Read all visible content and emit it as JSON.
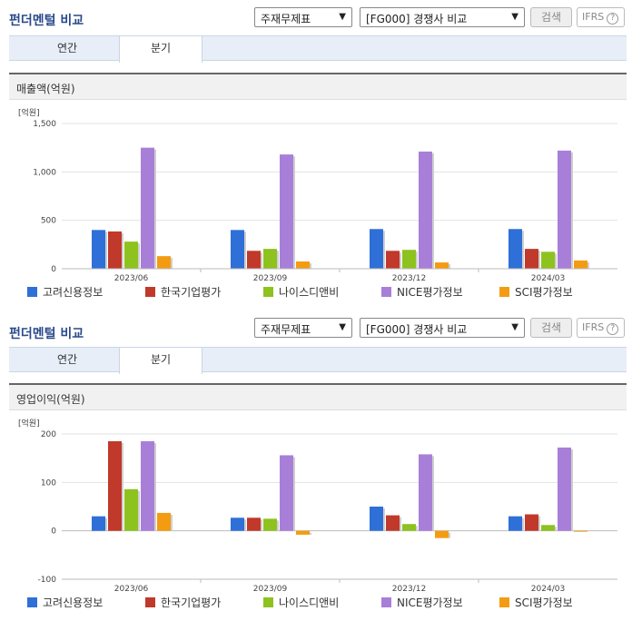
{
  "panels": [
    {
      "title": "펀더멘털 비교",
      "select1": "주재무제표",
      "select2": "[FG000] 경쟁사 비교",
      "search_label": "검색",
      "ifrs_label": "IFRS",
      "tabs": [
        "연간",
        "분기"
      ],
      "active_tab": 1,
      "chart_title": "매출액(억원)",
      "unit": "[억원]"
    },
    {
      "title": "펀더멘털 비교",
      "select1": "주재무제표",
      "select2": "[FG000] 경쟁사 비교",
      "search_label": "검색",
      "ifrs_label": "IFRS",
      "tabs": [
        "연간",
        "분기"
      ],
      "active_tab": 1,
      "chart_title": "영업이익(억원)",
      "unit": "[억원]"
    }
  ],
  "chart_data": [
    {
      "type": "bar",
      "title": "매출액(억원)",
      "categories": [
        "2023/06",
        "2023/09",
        "2023/12",
        "2024/03"
      ],
      "ylim": [
        0,
        1500
      ],
      "yticks": [
        0,
        500,
        1000,
        1500
      ],
      "ytick_labels": [
        "0",
        "500",
        "1,000",
        "1,500"
      ],
      "series": [
        {
          "name": "고려신용정보",
          "color": "#2f6fd8",
          "values": [
            400,
            400,
            410,
            410
          ]
        },
        {
          "name": "한국기업평가",
          "color": "#c0392b",
          "values": [
            385,
            185,
            185,
            205
          ]
        },
        {
          "name": "나이스디앤비",
          "color": "#8dc21f",
          "values": [
            280,
            205,
            195,
            175
          ]
        },
        {
          "name": "NICE평가정보",
          "color": "#a87fd8",
          "values": [
            1250,
            1180,
            1210,
            1220
          ]
        },
        {
          "name": "SCI평가정보",
          "color": "#f39c12",
          "values": [
            130,
            75,
            65,
            85
          ]
        }
      ]
    },
    {
      "type": "bar",
      "title": "영업이익(억원)",
      "categories": [
        "2023/06",
        "2023/09",
        "2023/12",
        "2024/03"
      ],
      "ylim": [
        -100,
        200
      ],
      "yticks": [
        -100,
        0,
        100,
        200
      ],
      "ytick_labels": [
        "-100",
        "0",
        "100",
        "200"
      ],
      "series": [
        {
          "name": "고려신용정보",
          "color": "#2f6fd8",
          "values": [
            30,
            27,
            50,
            30
          ]
        },
        {
          "name": "한국기업평가",
          "color": "#c0392b",
          "values": [
            185,
            27,
            32,
            34
          ]
        },
        {
          "name": "나이스디앤비",
          "color": "#8dc21f",
          "values": [
            86,
            25,
            14,
            12
          ]
        },
        {
          "name": "NICE평가정보",
          "color": "#a87fd8",
          "values": [
            185,
            156,
            158,
            172
          ]
        },
        {
          "name": "SCI평가정보",
          "color": "#f39c12",
          "values": [
            37,
            -8,
            -15,
            0
          ]
        }
      ]
    }
  ]
}
